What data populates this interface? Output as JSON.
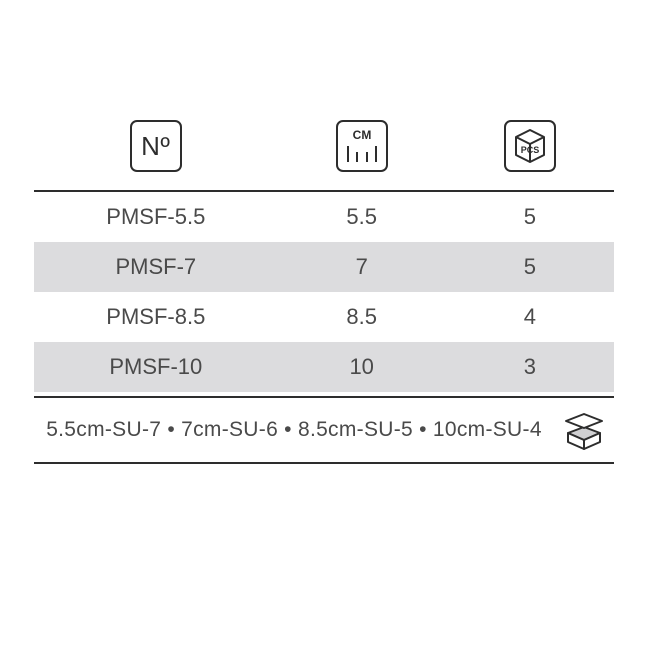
{
  "table": {
    "type": "table",
    "background_color": "#ffffff",
    "alt_row_color": "#dcdcde",
    "border_color": "#2d2d2d",
    "text_color": "#4a4a4a",
    "font_size": 22,
    "headers": {
      "number": "Nº",
      "size_unit": "CM",
      "pieces_label": "PCS"
    },
    "column_widths_pct": [
      42,
      29,
      29
    ],
    "rows": [
      {
        "model": "PMSF-5.5",
        "size_cm": "5.5",
        "pcs": "5"
      },
      {
        "model": "PMSF-7",
        "size_cm": "7",
        "pcs": "5"
      },
      {
        "model": "PMSF-8.5",
        "size_cm": "8.5",
        "pcs": "4"
      },
      {
        "model": "PMSF-10",
        "size_cm": "10",
        "pcs": "3"
      }
    ]
  },
  "footer": {
    "text": "5.5cm-SU-7 • 7cm-SU-6 • 8.5cm-SU-5 • 10cm-SU-4",
    "font_size": 21,
    "icon": "package-icon"
  }
}
